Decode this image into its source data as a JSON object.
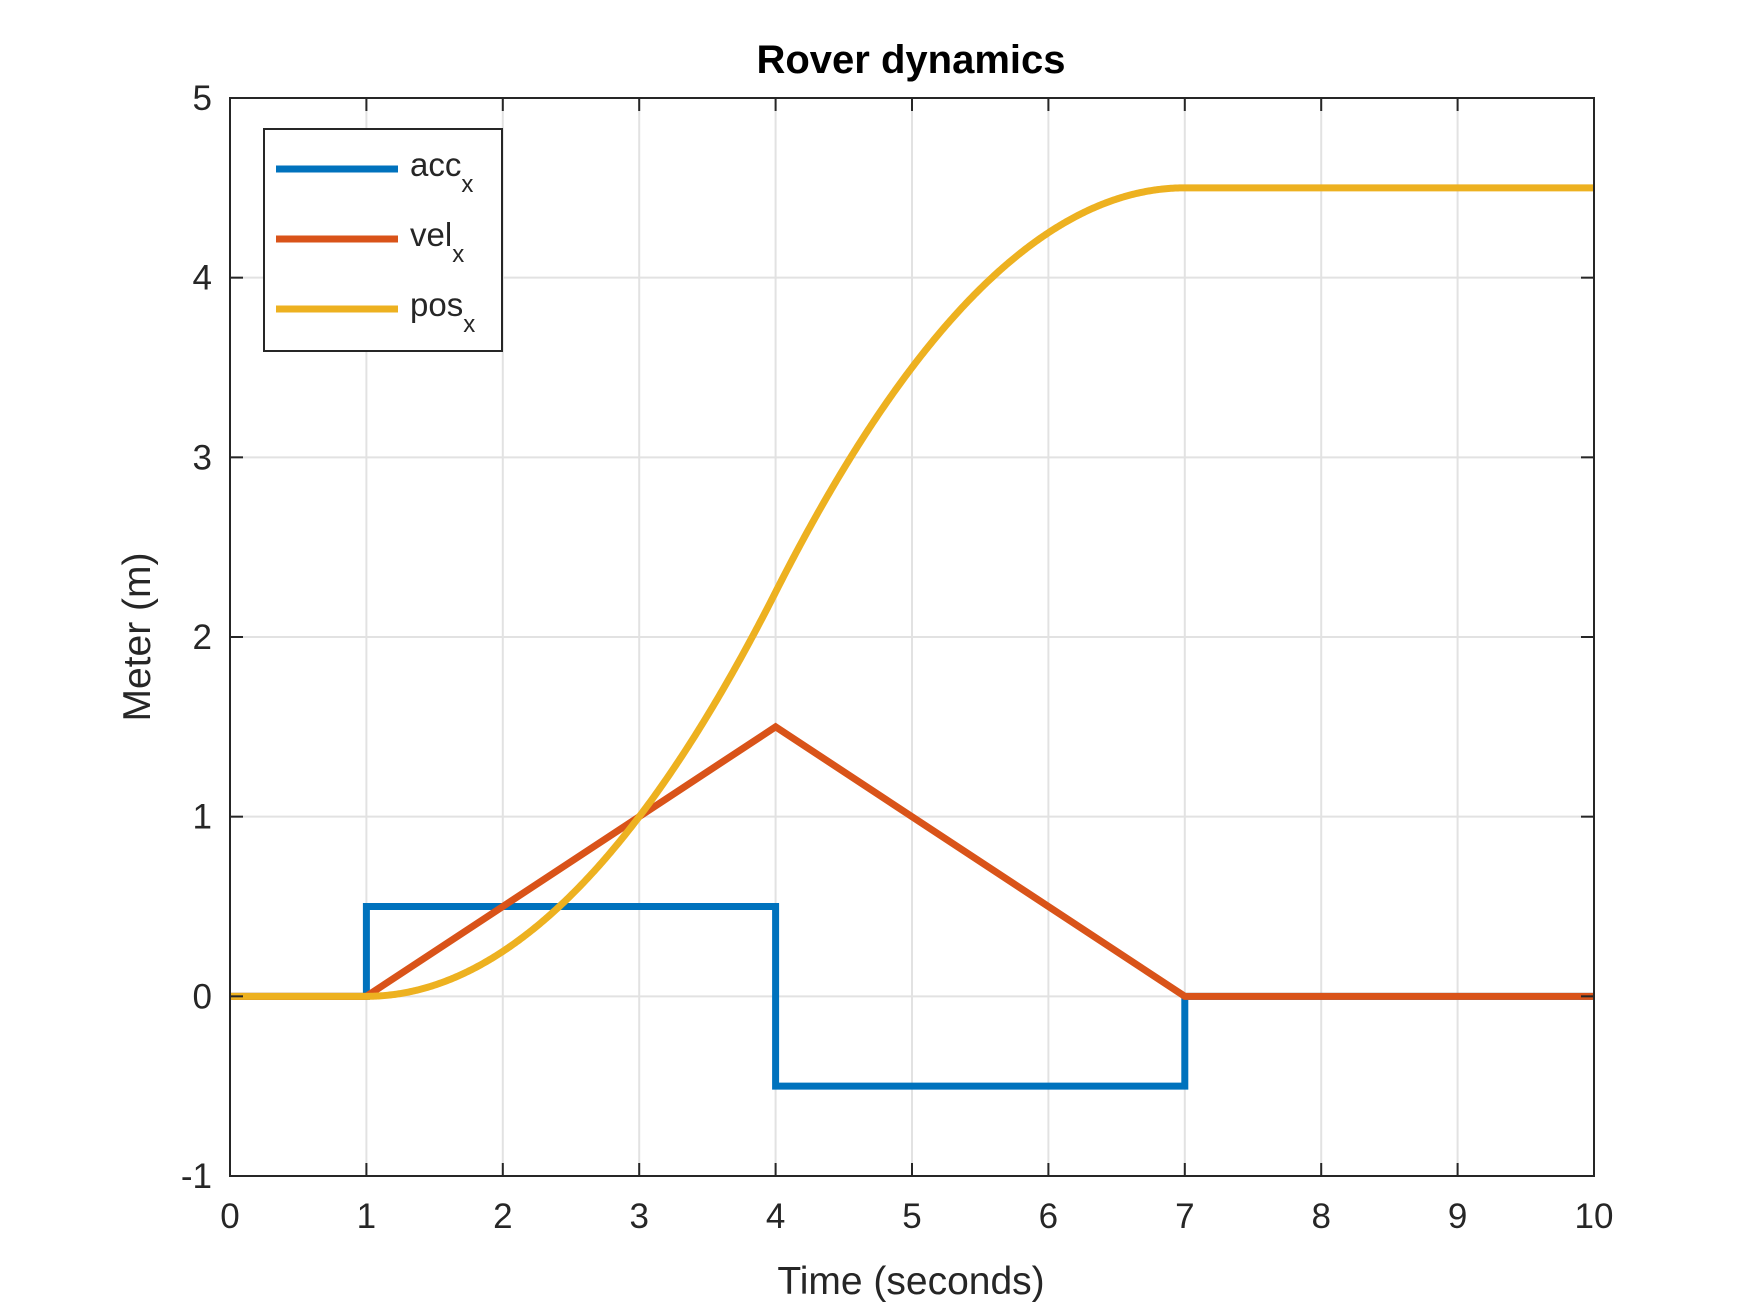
{
  "chart_data": {
    "type": "line",
    "title": "Rover dynamics",
    "xlabel": "Time (seconds)",
    "ylabel": "Meter (m)",
    "xlim": [
      0,
      10
    ],
    "ylim": [
      -1,
      5
    ],
    "xticks": [
      0,
      1,
      2,
      3,
      4,
      5,
      6,
      7,
      8,
      9,
      10
    ],
    "yticks": [
      -1,
      0,
      1,
      2,
      3,
      4,
      5
    ],
    "grid": true,
    "legend_position": "top-left",
    "series": [
      {
        "name": "acc",
        "subscript": "x",
        "color": "#0072BD",
        "x": [
          0,
          1,
          1,
          4,
          4,
          7,
          7,
          10
        ],
        "y": [
          0,
          0,
          0.5,
          0.5,
          -0.5,
          -0.5,
          0,
          0
        ]
      },
      {
        "name": "vel",
        "subscript": "x",
        "color": "#D95319",
        "x": [
          0,
          1,
          4,
          7,
          10
        ],
        "y": [
          0,
          0,
          1.5,
          0,
          0
        ]
      },
      {
        "name": "pos",
        "subscript": "x",
        "color": "#EDB120",
        "x": [
          0,
          1,
          1.5,
          2,
          2.5,
          3,
          3.5,
          4,
          4.5,
          5,
          5.5,
          6,
          6.5,
          7,
          10
        ],
        "y": [
          0,
          0,
          0.0625,
          0.25,
          0.5625,
          1.0,
          1.5625,
          2.25,
          2.9375,
          3.5,
          3.9375,
          4.25,
          4.4375,
          4.5,
          4.5
        ]
      }
    ]
  }
}
